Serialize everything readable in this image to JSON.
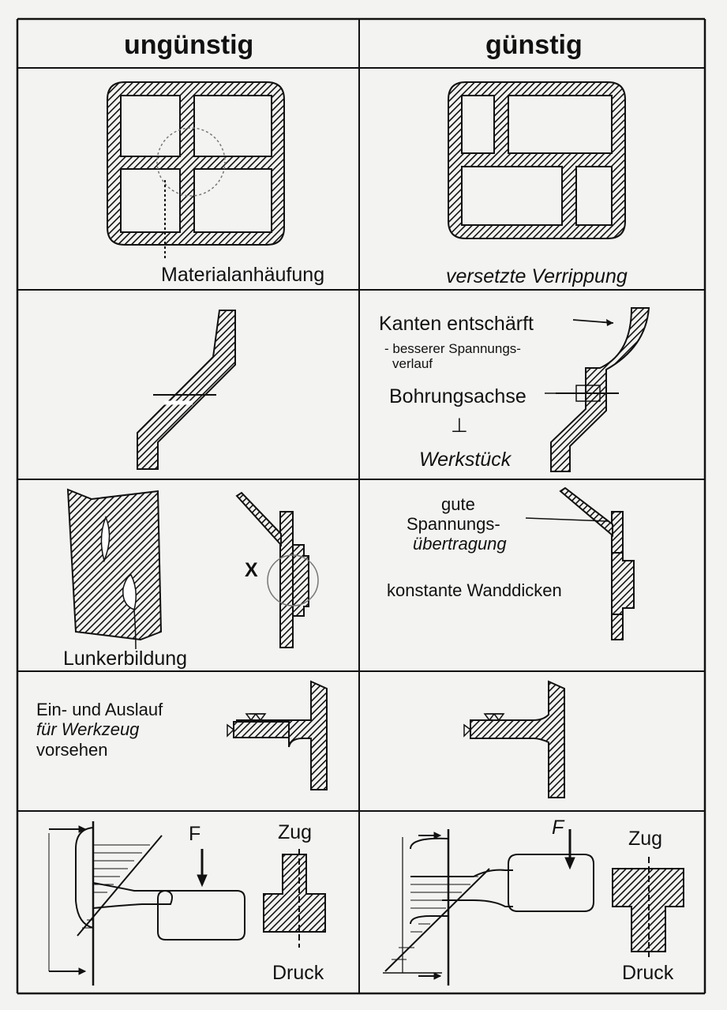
{
  "header": {
    "left": "ungünstig",
    "right": "günstig"
  },
  "row1": {
    "left_label": "Materialanhäufung",
    "right_label": "versetzte Verrippung"
  },
  "row2": {
    "kanten": "Kanten entschärft",
    "besserer1": "- besserer Spannungs-",
    "besserer2": "verlauf",
    "bohrung": "Bohrungsachse",
    "perp": "⊥",
    "werkstueck": "Werkstück"
  },
  "row3": {
    "x_mark": "X",
    "lunker": "Lunkerbildung",
    "gute1": "gute",
    "gute2": "Spannungs-",
    "gute3": "übertragung",
    "konstante": "konstante Wanddicken"
  },
  "row4": {
    "line1": "Ein- und Auslauf",
    "line2": "für Werkzeug",
    "line3": "vorsehen"
  },
  "row5": {
    "f_left": "F",
    "zug_left": "Zug",
    "druck_left": "Druck",
    "f_right": "F",
    "zug_right": "Zug",
    "druck_right": "Druck"
  }
}
